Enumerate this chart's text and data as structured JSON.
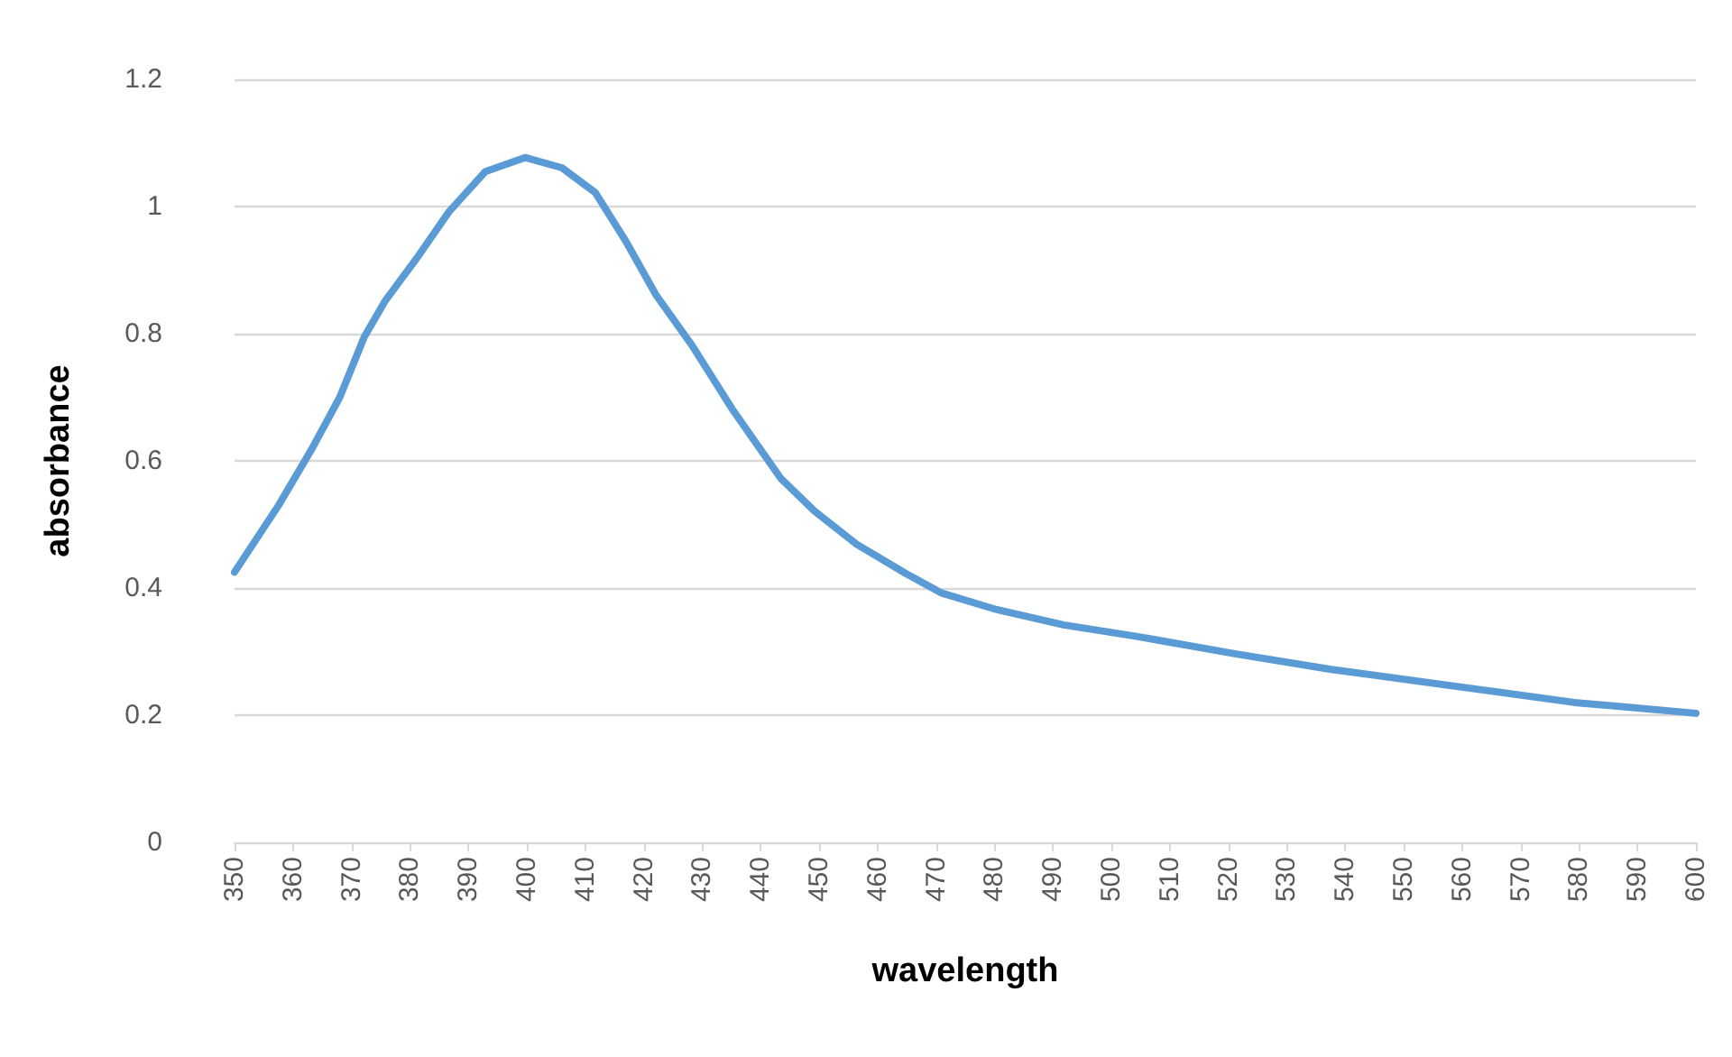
{
  "chart_data": {
    "type": "line",
    "xlabel": "wavelength",
    "ylabel": "absorbance",
    "x": [
      350,
      357.6,
      363.3,
      368,
      372.2,
      375.8,
      381.5,
      386.7,
      392.9,
      399.7,
      406,
      411.7,
      416.9,
      422.1,
      428.3,
      435.1,
      443.4,
      449.2,
      456.4,
      464.8,
      471,
      480.4,
      491.8,
      504.3,
      520.9,
      537.6,
      562.5,
      579.2,
      600
    ],
    "series": [
      {
        "color": "#5b9bd5",
        "values": [
          0.425,
          0.531,
          0.62,
          0.7,
          0.795,
          0.852,
          0.923,
          0.992,
          1.055,
          1.077,
          1.061,
          1.022,
          0.946,
          0.861,
          0.781,
          0.682,
          0.573,
          0.521,
          0.469,
          0.423,
          0.392,
          0.366,
          0.342,
          0.324,
          0.297,
          0.272,
          0.241,
          0.22,
          0.203
        ]
      }
    ],
    "xlim": [
      350,
      600
    ],
    "xticks": [
      350,
      360,
      370,
      380,
      390,
      400,
      410,
      420,
      430,
      440,
      450,
      460,
      470,
      480,
      490,
      500,
      510,
      520,
      530,
      540,
      550,
      560,
      570,
      580,
      590,
      600
    ],
    "ylim": [
      0,
      1.2
    ],
    "yticks": [
      0,
      0.2,
      0.4,
      0.6,
      0.8,
      1,
      1.2
    ],
    "grid": "y",
    "marker": "none",
    "line_style": "solid"
  }
}
